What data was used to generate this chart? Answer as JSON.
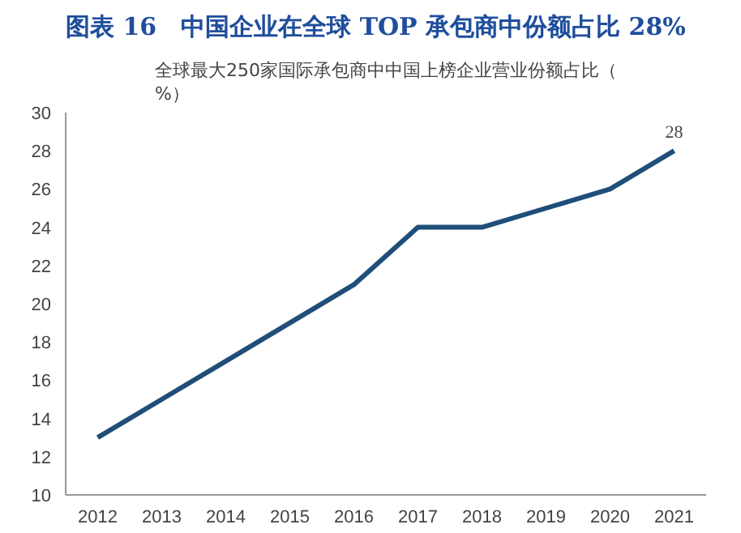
{
  "chart_data": {
    "type": "line",
    "title": "图表 16　中国企业在全球 TOP 承包商中份额占比 28%",
    "subtitle": "全球最大250家国际承包商中中国上榜企业营业份额占比（%）",
    "categories": [
      "2012",
      "2013",
      "2014",
      "2015",
      "2016",
      "2017",
      "2018",
      "2019",
      "2020",
      "2021"
    ],
    "series": [
      {
        "color": "#1f4e79",
        "values": [
          13,
          15,
          17,
          19,
          21,
          24,
          24,
          25,
          26,
          28
        ],
        "value_labels": [
          null,
          null,
          null,
          null,
          null,
          null,
          null,
          null,
          null,
          "28"
        ]
      }
    ],
    "ylim": [
      10,
      30
    ],
    "yticks": [
      10,
      12,
      14,
      16,
      18,
      20,
      22,
      24,
      26,
      28,
      30
    ],
    "grid": false,
    "marker": "none",
    "line_style": "solid"
  }
}
